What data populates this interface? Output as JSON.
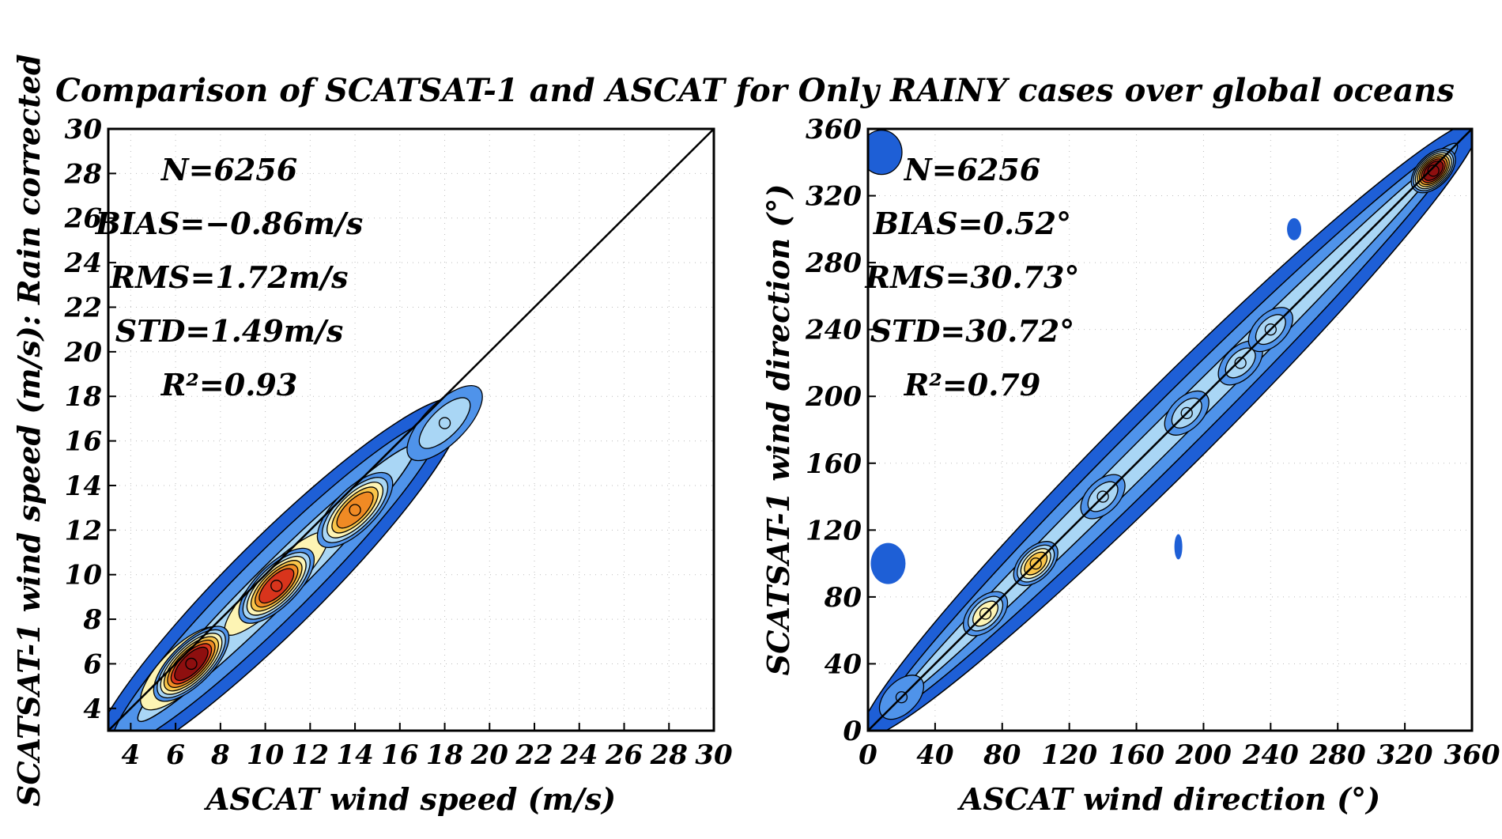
{
  "title": "Comparison of SCATSAT-1 and ASCAT for Only RAINY cases over global oceans",
  "y_rotated_label": "SCATSAT-1 wind speed (m/s): Rain corrected",
  "colors": {
    "level1": "#1e5fd6",
    "level2": "#4f93ea",
    "level3": "#a9d6f5",
    "level4": "#fdf4b4",
    "level5": "#f9c54a",
    "level6": "#f08a24",
    "level7": "#d8341c",
    "level8": "#8e0f0f",
    "contour": "#000000"
  },
  "chart_data": [
    {
      "type": "heatmap",
      "subtype": "2D density contour scatter",
      "xlabel": "ASCAT wind speed (m/s)",
      "ylabel": "",
      "xlim": [
        3,
        30
      ],
      "ylim": [
        3,
        30
      ],
      "xticks": [
        4,
        6,
        8,
        10,
        12,
        14,
        16,
        18,
        20,
        22,
        24,
        26,
        28,
        30
      ],
      "yticks": [
        4,
        6,
        8,
        10,
        12,
        14,
        16,
        18,
        20,
        22,
        24,
        26,
        28,
        30
      ],
      "grid": "dotted",
      "reference_line": "y = x",
      "stats": [
        "N=6256",
        "BIAS=−0.86m/s",
        "RMS=1.72m/s",
        "STD=1.49m/s",
        "R²=0.93"
      ],
      "density_peaks": [
        {
          "x": 6.7,
          "y": 6.0,
          "level": 8
        },
        {
          "x": 10.5,
          "y": 9.5,
          "level": 7
        },
        {
          "x": 14.0,
          "y": 12.9,
          "level": 6
        },
        {
          "x": 18.0,
          "y": 16.8,
          "level": 3
        }
      ]
    },
    {
      "type": "heatmap",
      "subtype": "2D density contour scatter",
      "xlabel": "ASCAT wind direction (°)",
      "ylabel": "SCATSAT-1 wind direction (°)",
      "xlim": [
        0,
        360
      ],
      "ylim": [
        0,
        360
      ],
      "xticks": [
        0,
        40,
        80,
        120,
        160,
        200,
        240,
        280,
        320,
        360
      ],
      "yticks": [
        0,
        40,
        80,
        120,
        160,
        200,
        240,
        280,
        320,
        360
      ],
      "grid": "dotted",
      "reference_line": "y = x",
      "stats": [
        "N=6256",
        "BIAS=0.52°",
        "RMS=30.73°",
        "STD=30.72°",
        "R²=0.79"
      ],
      "density_peaks": [
        {
          "x": 20,
          "y": 20,
          "level": 2
        },
        {
          "x": 70,
          "y": 70,
          "level": 4
        },
        {
          "x": 100,
          "y": 100,
          "level": 5
        },
        {
          "x": 140,
          "y": 140,
          "level": 3
        },
        {
          "x": 190,
          "y": 190,
          "level": 3
        },
        {
          "x": 222,
          "y": 220,
          "level": 3
        },
        {
          "x": 240,
          "y": 240,
          "level": 3
        },
        {
          "x": 337,
          "y": 335,
          "level": 8
        }
      ]
    }
  ]
}
